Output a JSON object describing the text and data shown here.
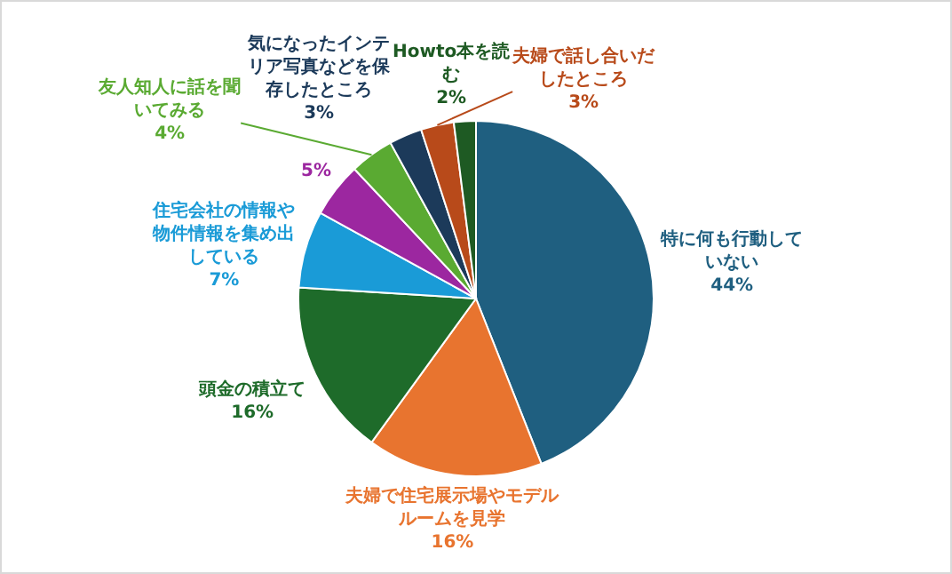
{
  "chart_data": {
    "type": "pie",
    "categories": [
      "特に何も行動していない",
      "夫婦で住宅展示場やモデルルームを見学",
      "頭金の積立て",
      "住宅会社の情報や物件情報を集め出している",
      null,
      "友人知人に話を聞いてみる",
      "気になったインテリア写真などを保存したところ",
      "夫婦で話し合いだしたところ",
      "Howto本を読む"
    ],
    "values": [
      44,
      16,
      16,
      7,
      5,
      4,
      3,
      3,
      2
    ],
    "value_labels": [
      "44%",
      "16%",
      "16%",
      "7%",
      "5%",
      "4%",
      "3%",
      "3%",
      "2%"
    ],
    "colors": [
      "#1f5f80",
      "#e8742f",
      "#1e6b2a",
      "#1a9bd7",
      "#9c27a0",
      "#5aaa32",
      "#1c3a5a",
      "#b84a1a",
      "#1e5a23"
    ]
  }
}
